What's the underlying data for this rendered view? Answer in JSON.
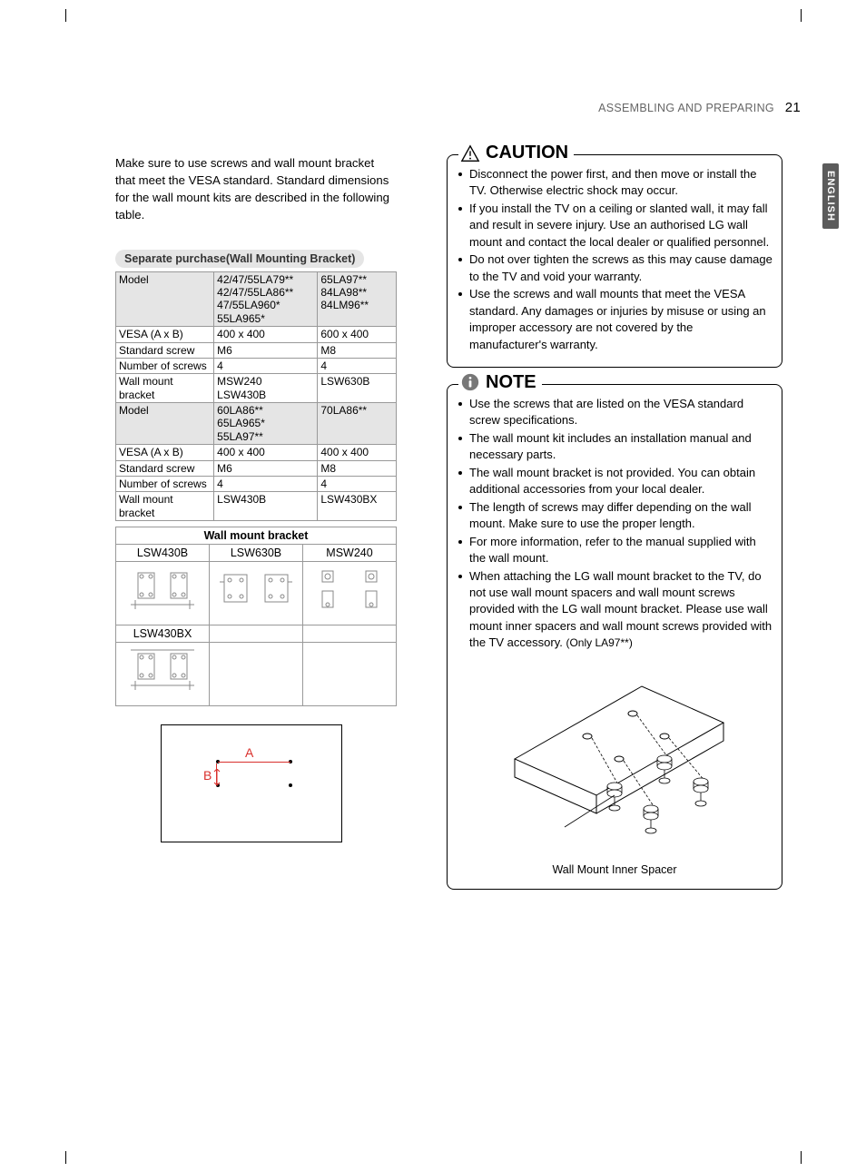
{
  "header": {
    "section": "ASSEMBLING AND PREPARING",
    "page_number": "21",
    "side_tab": "ENGLISH"
  },
  "intro": "Make sure to use screws and wall mount bracket that meet the VESA standard. Standard dimensions for the wall mount kits are described in the following table.",
  "pill_label": "Separate purchase(Wall Mounting Bracket)",
  "spec_table": {
    "rows": [
      {
        "h": "Model",
        "c1": "42/47/55LA79**\n42/47/55LA86**\n47/55LA960*\n55LA965*",
        "c2": "65LA97**\n84LA98**\n84LM96**",
        "shaded": true
      },
      {
        "h": "VESA (A x B)",
        "c1": "400 x 400",
        "c2": "600 x 400"
      },
      {
        "h": "Standard screw",
        "c1": "M6",
        "c2": "M8"
      },
      {
        "h": "Number of screws",
        "c1": "4",
        "c2": "4"
      },
      {
        "h": "Wall mount bracket",
        "c1": "MSW240\nLSW430B",
        "c2": "LSW630B"
      },
      {
        "h": "Model",
        "c1": "60LA86**\n65LA965*\n55LA97**",
        "c2": "70LA86**",
        "shaded": true
      },
      {
        "h": "VESA (A x B)",
        "c1": "400 x 400",
        "c2": "400 x 400"
      },
      {
        "h": "Standard screw",
        "c1": "M6",
        "c2": "M8"
      },
      {
        "h": "Number of screws",
        "c1": "4",
        "c2": "4"
      },
      {
        "h": "Wall mount bracket",
        "c1": "LSW430B",
        "c2": "LSW430BX"
      }
    ]
  },
  "bracket_illus": {
    "title": "Wall mount bracket",
    "headers": [
      "LSW430B",
      "LSW630B",
      "MSW240"
    ],
    "row2_label": "LSW430BX"
  },
  "vesa_diagram": {
    "labelA": "A",
    "labelB": "B"
  },
  "caution": {
    "title": "CAUTION",
    "items": [
      "Disconnect the power first, and then move or install the TV. Otherwise electric shock may occur.",
      "If you install the TV on a ceiling or slanted wall, it may fall and result in severe injury. Use an authorised LG wall mount and contact the local dealer or qualified personnel.",
      "Do not over tighten the screws as this may cause damage to the TV and void your warranty.",
      "Use the screws and wall mounts that meet the VESA standard. Any damages or injuries by misuse or using an improper accessory are not covered by the manufacturer's warranty."
    ]
  },
  "note": {
    "title": "NOTE",
    "items": [
      "Use the screws that are listed on the VESA standard screw specifications.",
      "The wall mount kit includes an installation manual and necessary parts.",
      "The wall mount bracket is not provided. You can obtain additional accessories from your local dealer.",
      "The length of screws may differ depending on the wall mount. Make sure to use the proper length.",
      "For more information, refer to the manual supplied with the wall mount.",
      "When attaching the LG wall mount bracket to the TV, do not use wall mount spacers and wall mount screws provided with the LG wall mount bracket. Please use wall mount inner spacers and wall mount screws provided with the TV accessory. (Only LA97**)"
    ],
    "illustration_caption": "Wall Mount Inner Spacer"
  },
  "colors": {
    "accent_red": "#d9302c",
    "pill_bg": "#d9d9d9",
    "gray_text": "#666666",
    "tab_bg": "#5b5b5b"
  }
}
